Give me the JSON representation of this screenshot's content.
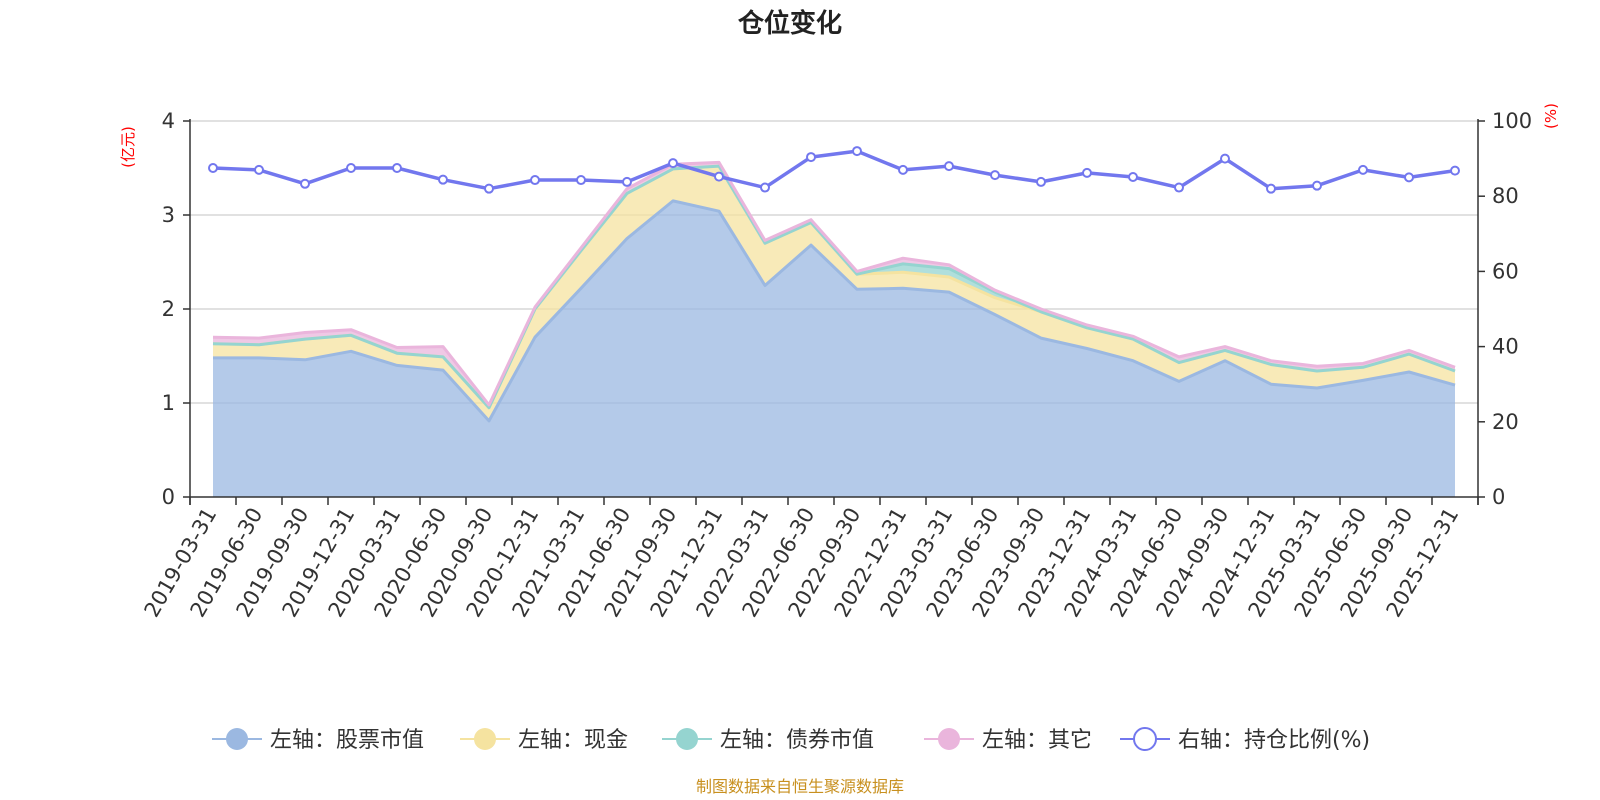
{
  "chart_data": {
    "type": "area",
    "title": "仓位变化",
    "left_axis_unit": "(亿元)",
    "right_axis_unit": "(%)",
    "left_ylim": [
      0,
      4
    ],
    "left_ticks": [
      "0",
      "1",
      "2",
      "3",
      "4"
    ],
    "right_ylim": [
      0,
      100
    ],
    "right_ticks": [
      "0",
      "20",
      "40",
      "60",
      "80",
      "100"
    ],
    "categories": [
      "2019-03-31",
      "2019-06-30",
      "2019-09-30",
      "2019-12-31",
      "2020-03-31",
      "2020-06-30",
      "2020-09-30",
      "2020-12-31",
      "2021-03-31",
      "2021-06-30",
      "2021-09-30",
      "2021-12-31",
      "2022-03-31",
      "2022-06-30",
      "2022-09-30",
      "2022-12-31",
      "2023-03-31",
      "2023-06-30",
      "2023-09-30",
      "2023-12-31",
      "2024-03-31",
      "2024-06-30",
      "2024-09-30",
      "2024-12-31",
      "2025-03-31",
      "2025-06-30",
      "2025-09-30",
      "2025-12-31"
    ],
    "series": [
      {
        "name": "左轴：股票市值",
        "axis": "left",
        "stack": true,
        "color": "#9bb8e1",
        "values": [
          1.48,
          1.48,
          1.46,
          1.55,
          1.4,
          1.35,
          0.81,
          1.7,
          2.22,
          2.75,
          3.15,
          3.04,
          2.25,
          2.68,
          2.21,
          2.22,
          2.18,
          1.94,
          1.69,
          1.58,
          1.45,
          1.23,
          1.45,
          1.2,
          1.16,
          1.24,
          1.33,
          1.19
        ]
      },
      {
        "name": "左轴：现金",
        "axis": "left",
        "stack": true,
        "color": "#f5e3a0",
        "values": [
          0.15,
          0.14,
          0.22,
          0.17,
          0.13,
          0.14,
          0.14,
          0.3,
          0.4,
          0.48,
          0.34,
          0.48,
          0.45,
          0.24,
          0.16,
          0.17,
          0.16,
          0.18,
          0.28,
          0.22,
          0.23,
          0.2,
          0.11,
          0.21,
          0.18,
          0.14,
          0.19,
          0.15
        ]
      },
      {
        "name": "左轴：债券市值",
        "axis": "left",
        "stack": true,
        "color": "#95d4d0",
        "values": [
          0,
          0,
          0,
          0,
          0,
          0,
          0,
          0,
          0,
          0,
          0,
          0,
          0,
          0,
          0,
          0.09,
          0.09,
          0.06,
          0,
          0,
          0,
          0,
          0,
          0,
          0,
          0,
          0,
          0
        ]
      },
      {
        "name": "左轴：其它",
        "axis": "left",
        "stack": true,
        "color": "#eab5dc",
        "values": [
          0.07,
          0.07,
          0.07,
          0.06,
          0.06,
          0.11,
          0.03,
          0.02,
          0.03,
          0.05,
          0.05,
          0.04,
          0.03,
          0.03,
          0.03,
          0.06,
          0.04,
          0.02,
          0.03,
          0.03,
          0.03,
          0.06,
          0.04,
          0.04,
          0.05,
          0.04,
          0.04,
          0.04
        ]
      },
      {
        "name": "右轴：持仓比例(%)",
        "axis": "right",
        "stack": false,
        "color": "#7277ee",
        "values": [
          87.5,
          87.0,
          83.3,
          87.5,
          87.5,
          84.4,
          82.0,
          84.3,
          84.3,
          83.8,
          88.8,
          85.2,
          82.3,
          90.4,
          92.0,
          87.0,
          88.0,
          85.6,
          83.8,
          86.2,
          85.1,
          82.3,
          90.0,
          82.0,
          82.8,
          87.0,
          85.0,
          86.8
        ]
      }
    ],
    "legend_position": "bottom",
    "grid": true,
    "source_note": "制图数据来自恒生聚源数据库",
    "source_color": "#c8901f"
  }
}
